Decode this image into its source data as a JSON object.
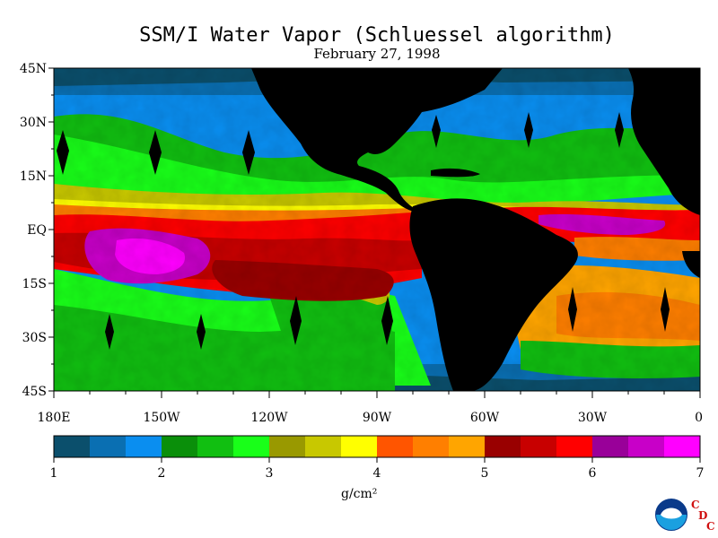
{
  "title": "SSM/I Water Vapor (Schluessel algorithm)",
  "subtitle": "February 27, 1998",
  "map": {
    "lat_labels": [
      "45N",
      "30N",
      "15N",
      "EQ",
      "15S",
      "30S",
      "45S"
    ],
    "lon_labels": [
      "180E",
      "150W",
      "120W",
      "90W",
      "60W",
      "30W",
      "0"
    ],
    "land_color": "#000000",
    "background_color": "#ffffff"
  },
  "colorbar": {
    "unit": "g/cm²",
    "tick_labels": [
      "1",
      "2",
      "3",
      "4",
      "5",
      "6",
      "7"
    ],
    "colors": [
      "#0b4f6c",
      "#0a6fb2",
      "#0a8ef0",
      "#0a8f0a",
      "#11bf11",
      "#19ff19",
      "#999900",
      "#c8c800",
      "#ffff00",
      "#ff5500",
      "#ff7f00",
      "#ffa500",
      "#990000",
      "#c80000",
      "#ff0000",
      "#990099",
      "#c800c8",
      "#ff00ff"
    ]
  },
  "logos": {
    "noaa": "NOAA",
    "cdc_letters": [
      "C",
      "D",
      "C"
    ]
  }
}
